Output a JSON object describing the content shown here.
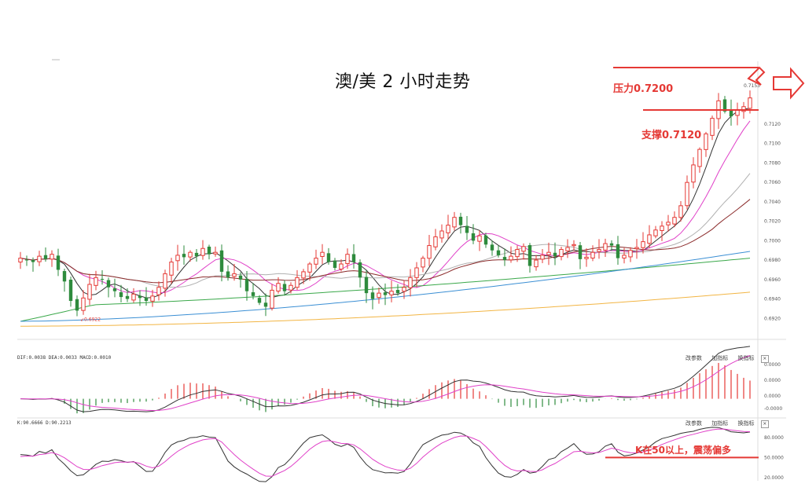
{
  "title": "澳/美 2 小时走势",
  "annotations": {
    "resistance": "压力0.7200",
    "support": "支撑0.7120",
    "kdj_note": "K在50以上，震荡偏多",
    "high_price": "0.7153",
    "low_price": "0.6922"
  },
  "macd_panel": {
    "legend": "DIF:0.0038  DEA:0.0033  MACD:0.0010",
    "toolbar": [
      "改参数",
      "加指标",
      "换指标"
    ],
    "close_label": "×"
  },
  "kdj_panel": {
    "legend": "K:90.6666  D:90.2213",
    "toolbar": [
      "改参数",
      "加指标",
      "换指标"
    ],
    "close_label": "×"
  },
  "colors": {
    "up": "#e53935",
    "down": "#2e8b3d",
    "ma5": "#333333",
    "ma10": "#e040c8",
    "ma20": "#b0b0b0",
    "ma30": "#8b2b2b",
    "ma60": "#3aa84a",
    "ma120": "#3b8fd4",
    "ma250": "#f2b544",
    "annotation": "#e53935"
  },
  "chart_data": [
    {
      "type": "candlestick",
      "ylim": [
        0.69,
        0.7175
      ],
      "yticks": [
        "0.6920",
        "0.6940",
        "0.6960",
        "0.6980",
        "0.7000",
        "0.7020",
        "0.7040",
        "0.7060",
        "0.7080",
        "0.7100",
        "0.7120"
      ],
      "resistance": 0.72,
      "support": 0.712,
      "closes": [
        0.6982,
        0.698,
        0.6978,
        0.6984,
        0.6981,
        0.6986,
        0.697,
        0.6958,
        0.6938,
        0.6928,
        0.6941,
        0.6955,
        0.6962,
        0.696,
        0.6952,
        0.6948,
        0.6942,
        0.694,
        0.6945,
        0.6941,
        0.6938,
        0.6943,
        0.6952,
        0.6966,
        0.6978,
        0.6985,
        0.6983,
        0.6988,
        0.6984,
        0.6992,
        0.6986,
        0.6988,
        0.6968,
        0.6962,
        0.6966,
        0.696,
        0.6948,
        0.6943,
        0.6936,
        0.6932,
        0.6949,
        0.6956,
        0.6948,
        0.6954,
        0.6962,
        0.6968,
        0.6976,
        0.6982,
        0.6988,
        0.6978,
        0.6972,
        0.6976,
        0.6986,
        0.6978,
        0.6962,
        0.6946,
        0.694,
        0.6946,
        0.6944,
        0.6948,
        0.6946,
        0.6952,
        0.6962,
        0.6972,
        0.6982,
        0.6995,
        0.7004,
        0.701,
        0.7016,
        0.7024,
        0.7016,
        0.7008,
        0.7,
        0.7005,
        0.6996,
        0.699,
        0.6985,
        0.698,
        0.6984,
        0.6991,
        0.6994,
        0.6974,
        0.698,
        0.6985,
        0.6988,
        0.6984,
        0.6991,
        0.6993,
        0.6996,
        0.6981,
        0.6983,
        0.6988,
        0.6991,
        0.6997,
        0.6995,
        0.6982,
        0.6985,
        0.699,
        0.6993,
        0.6999,
        0.7006,
        0.7011,
        0.7015,
        0.7019,
        0.7024,
        0.7036,
        0.706,
        0.7078,
        0.7094,
        0.711,
        0.7126,
        0.7144,
        0.7133,
        0.7128,
        0.7135,
        0.7138,
        0.7147
      ]
    },
    {
      "type": "bar",
      "name": "MACD",
      "ylim": [
        -0.0012,
        0.0028
      ],
      "yticks": [
        "0.0000",
        "0.0000",
        "0.0000",
        "-0.0000"
      ]
    },
    {
      "type": "line",
      "name": "KDJ",
      "ylim": [
        15,
        100
      ],
      "yticks": [
        "80.0000",
        "50.0000",
        "20.0000"
      ],
      "reference": 50
    }
  ]
}
